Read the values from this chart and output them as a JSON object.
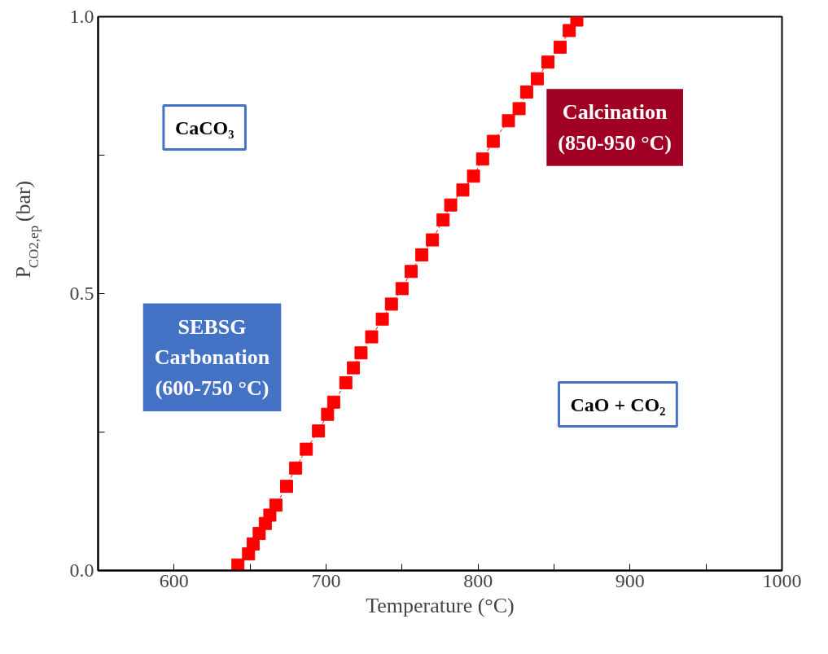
{
  "chart_data": {
    "type": "line",
    "xlabel": "Temperature (°C)",
    "ylabel": "P$_{CO2,ep}$ (bar)",
    "marker": "square",
    "line_style": "dashed",
    "grid": false,
    "xlim": [
      550,
      1000
    ],
    "ylim": [
      0,
      1
    ],
    "xticks": [
      {
        "value": 550,
        "label": null
      },
      600,
      {
        "value": 650,
        "label": null
      },
      700,
      {
        "value": 750,
        "label": null
      },
      800,
      {
        "value": 850,
        "label": null
      },
      900,
      {
        "value": 950,
        "label": null
      },
      1000
    ],
    "yticks": [
      {
        "value": 0,
        "label": "0.0"
      },
      {
        "value": 0.25,
        "label": null
      },
      0.5,
      {
        "value": 0.75,
        "label": null
      },
      {
        "value": 1,
        "label": "1.0"
      }
    ],
    "x": [
      642,
      649,
      652,
      656,
      660,
      663,
      667,
      674,
      680,
      687,
      695,
      701,
      705,
      713,
      718,
      723,
      730,
      737,
      743,
      750,
      756,
      763,
      770,
      777,
      782,
      790,
      797,
      803,
      810,
      820,
      827,
      832,
      839,
      846,
      854,
      860,
      865
    ],
    "series": [
      {
        "color": "#ff0000",
        "values": [
          0.01,
          0.03,
          0.048,
          0.067,
          0.085,
          0.1,
          0.118,
          0.152,
          0.185,
          0.219,
          0.252,
          0.282,
          0.304,
          0.339,
          0.366,
          0.393,
          0.422,
          0.454,
          0.481,
          0.509,
          0.54,
          0.57,
          0.597,
          0.633,
          0.66,
          0.687,
          0.712,
          0.743,
          0.775,
          0.812,
          0.834,
          0.864,
          0.888,
          0.918,
          0.945,
          0.975,
          0.994
        ]
      }
    ],
    "annotations": [
      "CaCO₃",
      "Calcination\n(850-950 °C)",
      "SEBSG\nCarbonation\n(600-750 °C)",
      "CaO + CO₂"
    ]
  }
}
